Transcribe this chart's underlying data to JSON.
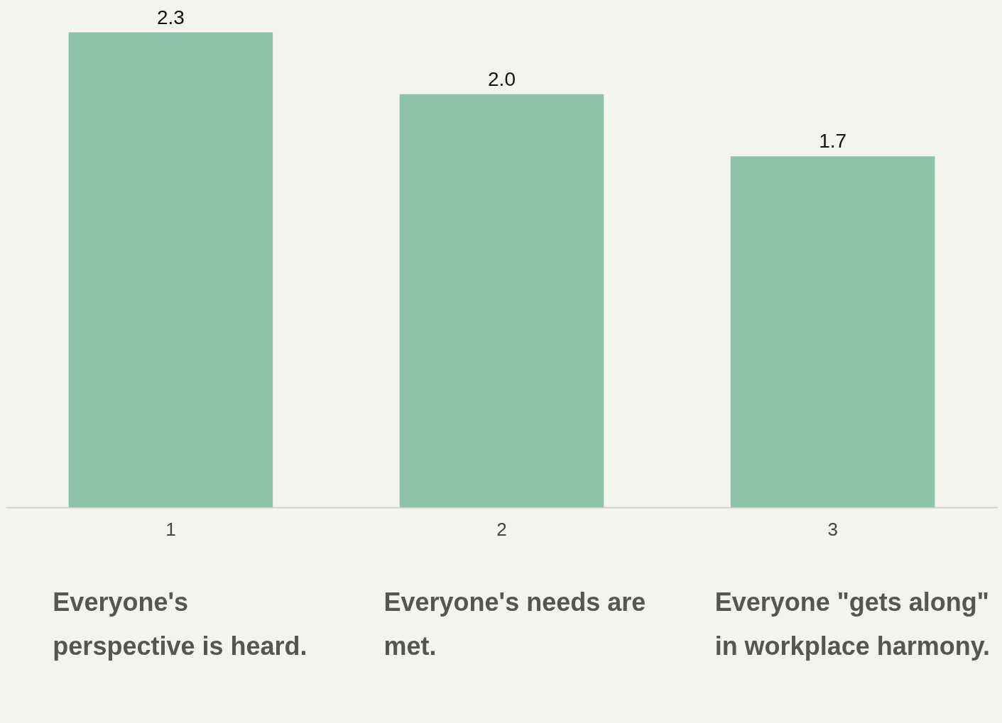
{
  "chart_data": {
    "type": "bar",
    "categories": [
      "1",
      "2",
      "3"
    ],
    "values": [
      2.3,
      2.0,
      1.7
    ],
    "value_labels": [
      "2.3",
      "2.0",
      "1.7"
    ],
    "color": "#8fc3a8",
    "tick_labels": "x",
    "annotations": [
      "Everyone's perspective is heard.",
      "Everyone's needs are met.",
      "Everyone \"gets along\" in workplace harmony."
    ]
  }
}
